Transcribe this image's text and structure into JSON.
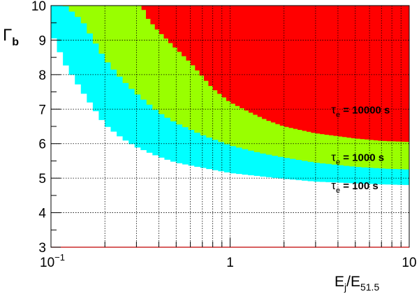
{
  "chart_data": {
    "type": "area",
    "title": "",
    "x_scale": "log",
    "xlim": [
      0.1,
      10
    ],
    "ylim": [
      3,
      10
    ],
    "grid": true,
    "xlabel": {
      "main": "E",
      "sub1": "j",
      "mid": "/E",
      "sub2": "51.5"
    },
    "ylabel": {
      "main": "Γ",
      "sub": "b"
    },
    "x_ticks": [
      {
        "value": 0.1,
        "base": "10",
        "exp": "−1"
      },
      {
        "value": 1,
        "text": "1"
      },
      {
        "value": 10,
        "text": "10"
      }
    ],
    "y_ticks": [
      3,
      4,
      5,
      6,
      7,
      8,
      9,
      10
    ],
    "regions": [
      {
        "name": "tau_e_100",
        "color": "#00ffff",
        "label": {
          "tau": "τ",
          "sub": "e",
          "rest": " = 100 s"
        },
        "label_at": [
          4.8,
          4.8
        ],
        "boundary": {
          "x": [
            0.1,
            0.12,
            0.15,
            0.2,
            0.25,
            0.3,
            0.4,
            0.5,
            0.7,
            1,
            1.5,
            2,
            3,
            5,
            7,
            10
          ],
          "y": [
            9.25,
            8.3,
            7.5,
            6.55,
            6.15,
            5.9,
            5.62,
            5.45,
            5.3,
            5.15,
            5.05,
            4.98,
            4.9,
            4.85,
            4.82,
            4.8
          ]
        }
      },
      {
        "name": "tau_e_1000",
        "color": "#99ff00",
        "label": {
          "tau": "τ",
          "sub": "e",
          "rest": " = 1000 s"
        },
        "label_at": [
          4.8,
          5.62
        ],
        "boundary": {
          "x": [
            0.1,
            0.12,
            0.15,
            0.2,
            0.25,
            0.3,
            0.4,
            0.5,
            0.7,
            1,
            1.5,
            2,
            3,
            5,
            7,
            10
          ],
          "y": [
            10,
            10,
            9.55,
            8.45,
            7.85,
            7.45,
            6.9,
            6.6,
            6.25,
            5.95,
            5.72,
            5.6,
            5.45,
            5.33,
            5.28,
            5.25
          ]
        }
      },
      {
        "name": "tau_e_10000",
        "color": "#ff0000",
        "label": {
          "tau": "τ",
          "sub": "e",
          "rest": " = 10000 s"
        },
        "label_at": [
          4.8,
          7.0
        ],
        "boundary": {
          "x": [
            0.32,
            0.35,
            0.4,
            0.5,
            0.6,
            0.7,
            0.8,
            1,
            1.3,
            1.6,
            2,
            3,
            5,
            7,
            10
          ],
          "y": [
            10,
            9.6,
            9.25,
            8.75,
            8.35,
            7.95,
            7.6,
            7.2,
            6.9,
            6.68,
            6.5,
            6.3,
            6.15,
            6.08,
            6.05
          ]
        }
      }
    ]
  }
}
